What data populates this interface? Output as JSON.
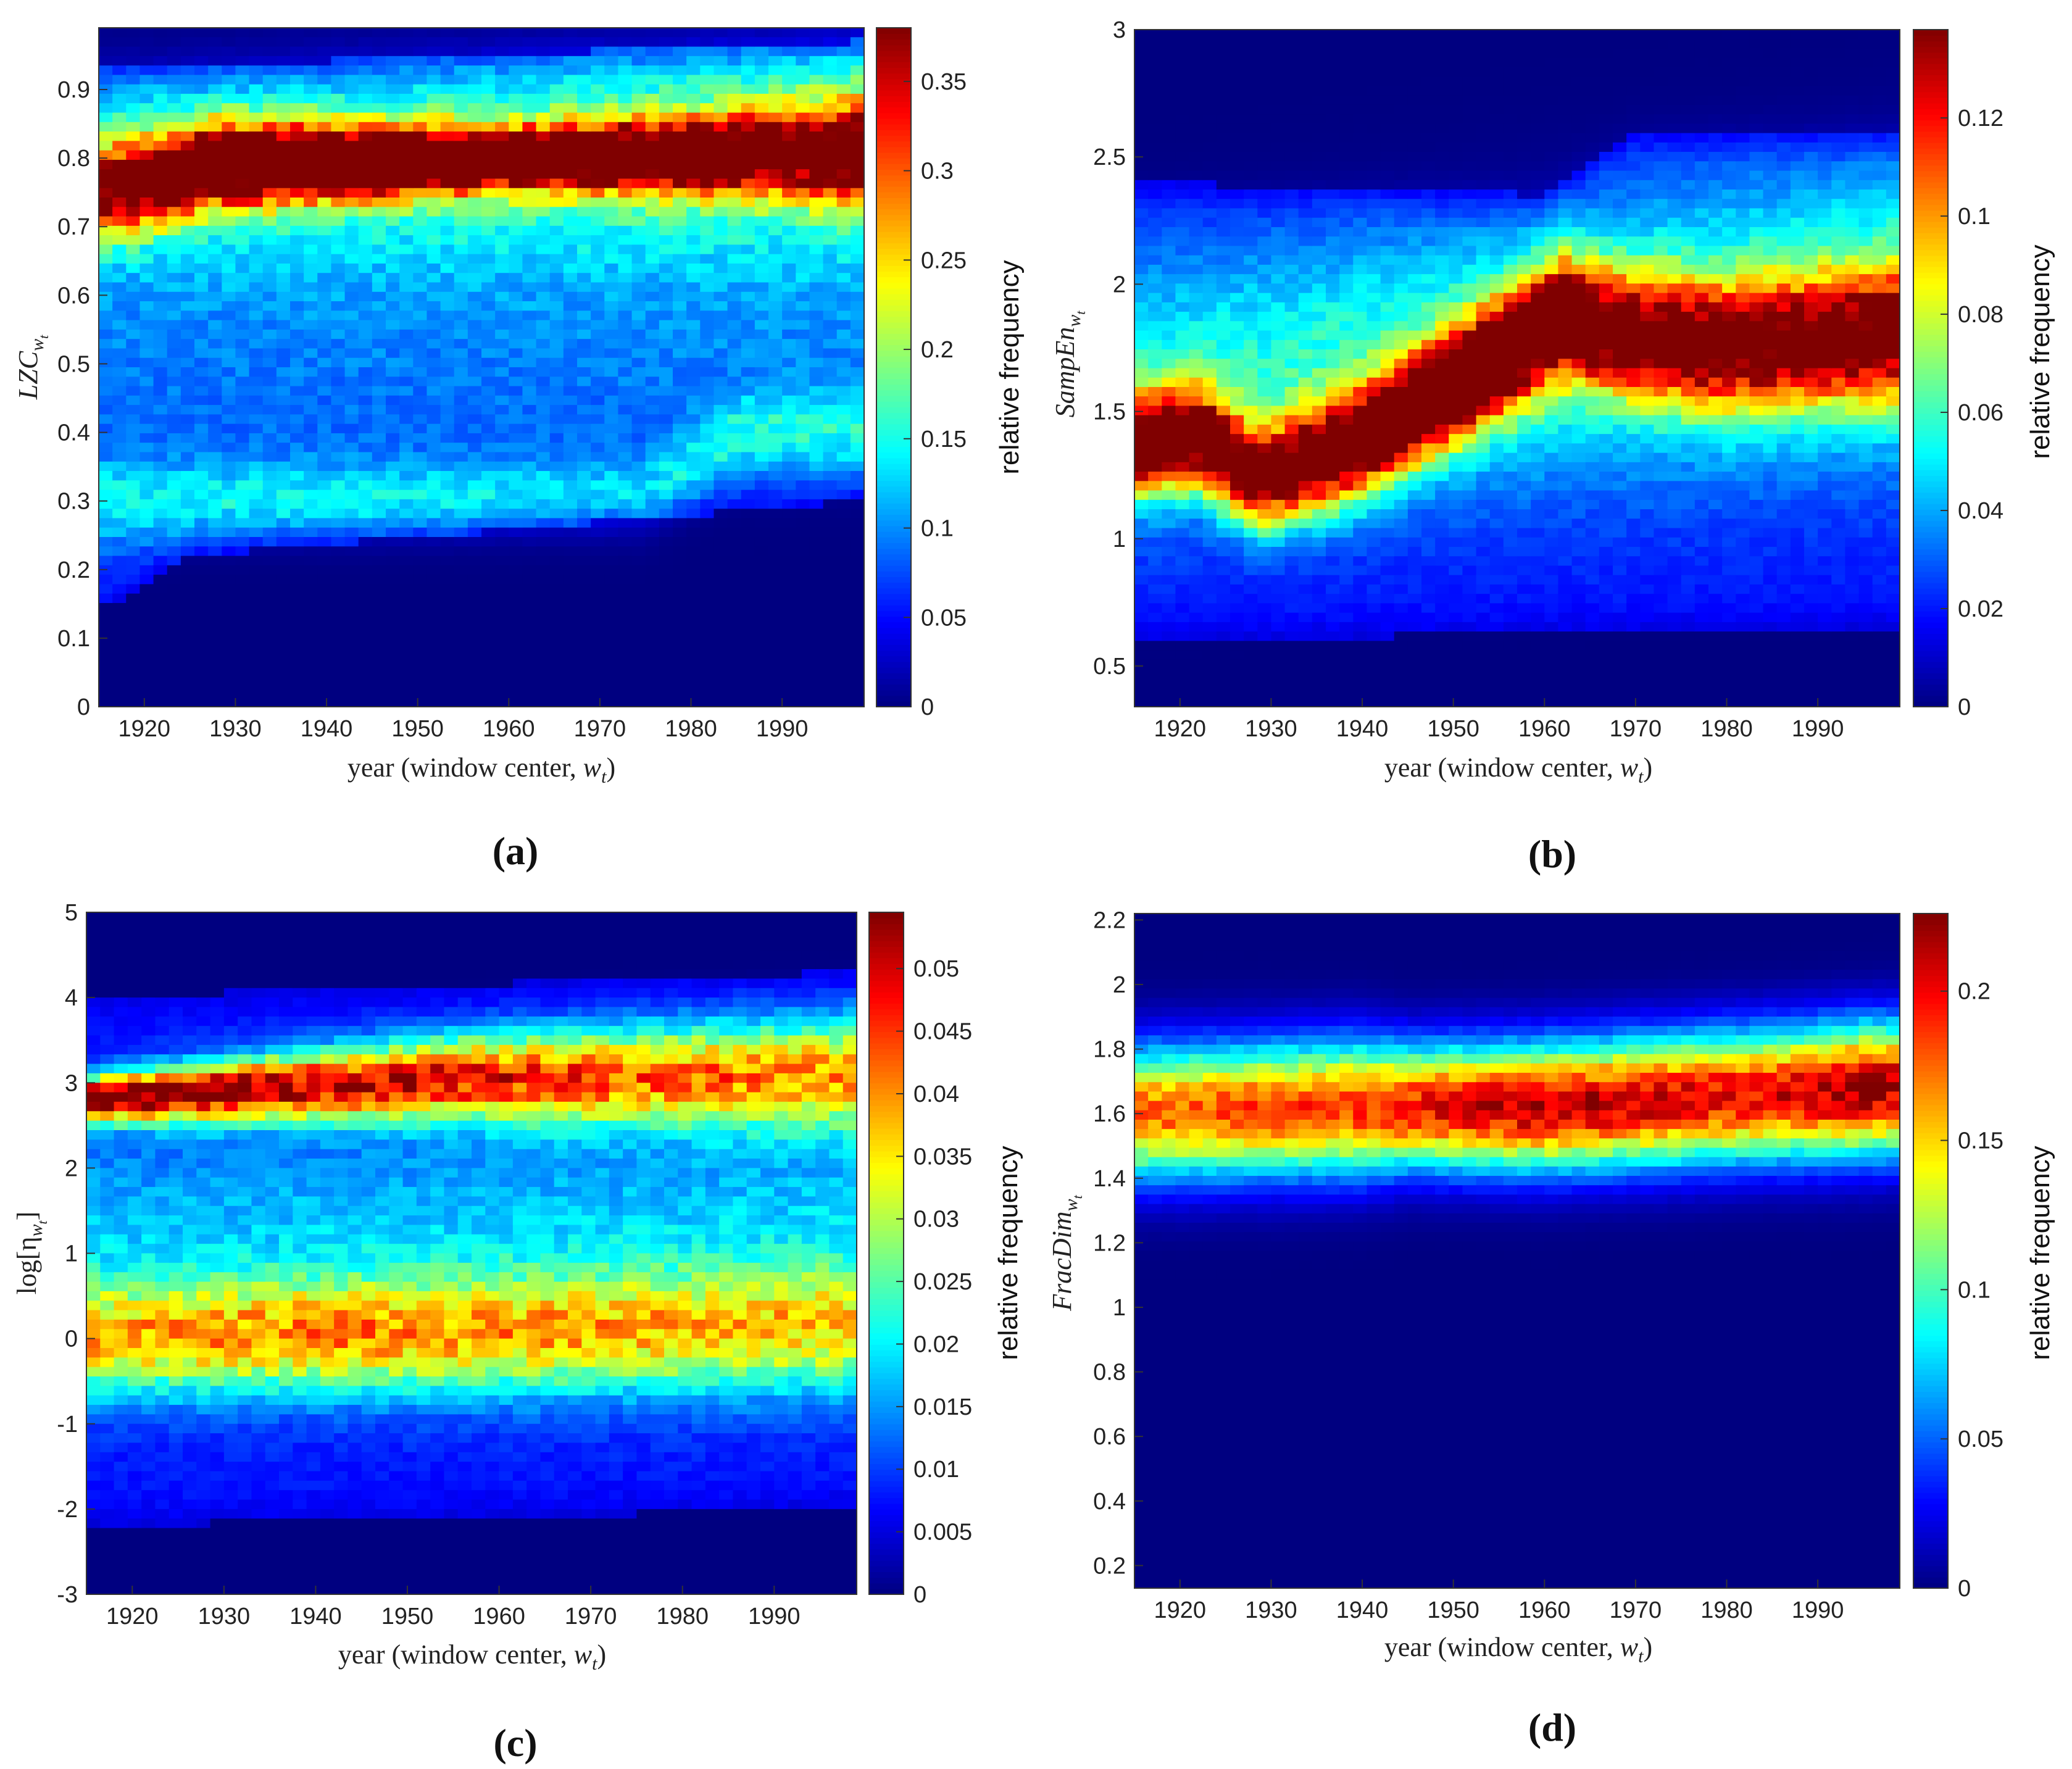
{
  "chart_data": [
    {
      "type": "heatmap",
      "panel": "(a)",
      "title": "",
      "xlabel": "year (window center, w_t)",
      "xlabel_parts": [
        "year (window center, ",
        "w",
        "t",
        ")"
      ],
      "ylabel": "LZC_wt",
      "ylabel_parts": [
        "LZC",
        "w",
        "t"
      ],
      "x_range": [
        1915,
        1999
      ],
      "ylim": [
        0,
        0.99
      ],
      "xticks": [
        1920,
        1930,
        1940,
        1950,
        1960,
        1970,
        1980,
        1990
      ],
      "yticks": [
        0,
        0.1,
        0.2,
        0.3,
        0.4,
        0.5,
        0.6,
        0.7,
        0.8,
        0.9
      ],
      "colorbar": {
        "label": "relative frequency",
        "range": [
          0,
          0.38
        ],
        "ticks": [
          0,
          0.05,
          0.1,
          0.15,
          0.2,
          0.25,
          0.3,
          0.35
        ]
      },
      "colormap": "jet",
      "base_level": 0.07,
      "noise": 0.15,
      "bands": [
        {
          "center": [
            [
              1915,
              0.75
            ],
            [
              1922,
              0.77
            ],
            [
              1927,
              0.79
            ],
            [
              1999,
              0.81
            ]
          ],
          "sigma": [
            [
              1915,
              0.045
            ],
            [
              1960,
              0.03
            ],
            [
              1990,
              0.04
            ],
            [
              1999,
              0.05
            ]
          ],
          "peak": [
            [
              1915,
              0.26
            ],
            [
              1925,
              0.35
            ],
            [
              1950,
              0.38
            ],
            [
              1975,
              0.34
            ],
            [
              1990,
              0.29
            ],
            [
              1999,
              0.27
            ]
          ]
        },
        {
          "center": [
            [
              1915,
              0.78
            ],
            [
              1999,
              0.82
            ]
          ],
          "sigma": [
            [
              1915,
              0.11
            ],
            [
              1999,
              0.13
            ]
          ],
          "peak": [
            [
              1915,
              0.09
            ],
            [
              1999,
              0.12
            ]
          ]
        },
        {
          "center": [
            [
              1915,
              0.3
            ],
            [
              1975,
              0.3
            ],
            [
              1985,
              0.4
            ],
            [
              1999,
              0.4
            ]
          ],
          "sigma": [
            [
              1915,
              0.04
            ],
            [
              1999,
              0.04
            ]
          ],
          "peak": [
            [
              1915,
              0.07
            ],
            [
              1999,
              0.07
            ]
          ]
        },
        {
          "center": [
            [
              1915,
              0.5
            ],
            [
              1999,
              0.5
            ]
          ],
          "sigma": [
            [
              1915,
              0.12
            ],
            [
              1999,
              0.12
            ]
          ],
          "peak": [
            [
              1915,
              0.02
            ],
            [
              1999,
              0.02
            ]
          ]
        }
      ],
      "low_cut": [
        [
          1915,
          0.14
        ],
        [
          1925,
          0.22
        ],
        [
          1999,
          0.3
        ]
      ],
      "high_cut": [
        [
          1915,
          0.93
        ],
        [
          1999,
          0.97
        ]
      ]
    },
    {
      "type": "heatmap",
      "panel": "(b)",
      "title": "",
      "xlabel": "year (window center, w_t)",
      "xlabel_parts": [
        "year (window center, ",
        "w",
        "t",
        ")"
      ],
      "ylabel": "SampEn_wt",
      "ylabel_parts": [
        "SampEn",
        "w",
        "t"
      ],
      "x_range": [
        1915,
        1999
      ],
      "ylim": [
        0.34,
        3.0
      ],
      "xticks": [
        1920,
        1930,
        1940,
        1950,
        1960,
        1970,
        1980,
        1990
      ],
      "yticks": [
        0.5,
        1,
        1.5,
        2,
        2.5,
        3
      ],
      "colorbar": {
        "label": "relative frequency",
        "range": [
          0,
          0.138
        ],
        "ticks": [
          0,
          0.02,
          0.04,
          0.06,
          0.08,
          0.1,
          0.12
        ]
      },
      "colormap": "jet",
      "base_level": 0.02,
      "noise": 0.12,
      "bands": [
        {
          "center": [
            [
              1915,
              1.37
            ],
            [
              1922,
              1.4
            ],
            [
              1929,
              1.23
            ],
            [
              1940,
              1.38
            ],
            [
              1950,
              1.6
            ],
            [
              1962,
              1.87
            ],
            [
              1970,
              1.8
            ],
            [
              1980,
              1.75
            ],
            [
              1999,
              1.8
            ]
          ],
          "sigma": [
            [
              1915,
              0.13
            ],
            [
              1999,
              0.18
            ]
          ],
          "peak": [
            [
              1915,
              0.125
            ],
            [
              1930,
              0.115
            ],
            [
              1940,
              0.13
            ],
            [
              1955,
              0.13
            ],
            [
              1962,
              0.122
            ],
            [
              1968,
              0.1
            ],
            [
              1999,
              0.092
            ]
          ]
        },
        {
          "center": [
            [
              1915,
              1.6
            ],
            [
              1999,
              1.9
            ]
          ],
          "sigma": [
            [
              1915,
              0.35
            ],
            [
              1999,
              0.4
            ]
          ],
          "peak": [
            [
              1915,
              0.035
            ],
            [
              1999,
              0.045
            ]
          ]
        }
      ],
      "low_cut": [
        [
          1915,
          0.6
        ],
        [
          1999,
          0.65
        ]
      ],
      "high_cut": [
        [
          1915,
          2.4
        ],
        [
          1960,
          2.35
        ],
        [
          1970,
          2.6
        ],
        [
          1999,
          2.6
        ]
      ]
    },
    {
      "type": "heatmap",
      "panel": "(c)",
      "title": "",
      "xlabel": "year (window center, w_t)",
      "xlabel_parts": [
        "year (window center, ",
        "w",
        "t",
        ")"
      ],
      "ylabel": "log[η_wt]",
      "ylabel_parts": [
        "log[η",
        "w",
        "t",
        "]"
      ],
      "x_range": [
        1915,
        1999
      ],
      "ylim": [
        -3,
        5
      ],
      "xticks": [
        1920,
        1930,
        1940,
        1950,
        1960,
        1970,
        1980,
        1990
      ],
      "yticks": [
        -3,
        -2,
        -1,
        0,
        1,
        2,
        3,
        4,
        5
      ],
      "colorbar": {
        "label": "relative frequency",
        "range": [
          0,
          0.0545
        ],
        "ticks": [
          0,
          0.005,
          0.01,
          0.015,
          0.02,
          0.025,
          0.03,
          0.035,
          0.04,
          0.045,
          0.05
        ]
      },
      "colormap": "jet",
      "base_level": 0.008,
      "noise": 0.15,
      "bands": [
        {
          "center": [
            [
              1915,
              2.8
            ],
            [
              1930,
              2.9
            ],
            [
              1955,
              3.05
            ],
            [
              1999,
              3.1
            ]
          ],
          "sigma": [
            [
              1915,
              0.18
            ],
            [
              1960,
              0.35
            ],
            [
              1999,
              0.45
            ]
          ],
          "peak": [
            [
              1915,
              0.05
            ],
            [
              1935,
              0.044
            ],
            [
              1955,
              0.04
            ],
            [
              1975,
              0.034
            ],
            [
              1999,
              0.031
            ]
          ]
        },
        {
          "center": [
            [
              1915,
              0.0
            ],
            [
              1999,
              0.1
            ]
          ],
          "sigma": [
            [
              1915,
              0.45
            ],
            [
              1999,
              0.5
            ]
          ],
          "peak": [
            [
              1915,
              0.027
            ],
            [
              1940,
              0.029
            ],
            [
              1999,
              0.025
            ]
          ]
        },
        {
          "center": [
            [
              1915,
              1.2
            ],
            [
              1999,
              1.3
            ]
          ],
          "sigma": [
            [
              1915,
              0.9
            ],
            [
              1999,
              0.9
            ]
          ],
          "peak": [
            [
              1915,
              0.009
            ],
            [
              1999,
              0.01
            ]
          ]
        }
      ],
      "low_cut": [
        [
          1915,
          -2.2
        ],
        [
          1999,
          -2.0
        ]
      ],
      "high_cut": [
        [
          1915,
          4.0
        ],
        [
          1999,
          4.3
        ]
      ]
    },
    {
      "type": "heatmap",
      "panel": "(d)",
      "title": "",
      "xlabel": "year (window center, w_t)",
      "xlabel_parts": [
        "year (window center, ",
        "w",
        "t",
        ")"
      ],
      "ylabel": "FracDim_wt",
      "ylabel_parts": [
        "FracDim",
        "w",
        "t"
      ],
      "x_range": [
        1915,
        1999
      ],
      "ylim": [
        0.13,
        2.22
      ],
      "xticks": [
        1920,
        1930,
        1940,
        1950,
        1960,
        1970,
        1980,
        1990
      ],
      "yticks": [
        0.2,
        0.4,
        0.6,
        0.8,
        1,
        1.2,
        1.4,
        1.6,
        1.8,
        2,
        2.2
      ],
      "colorbar": {
        "label": "relative frequency",
        "range": [
          0,
          0.226
        ],
        "ticks": [
          0,
          0.05,
          0.1,
          0.15,
          0.2
        ]
      },
      "colormap": "jet",
      "base_level": 0.0,
      "noise": 0.1,
      "bands": [
        {
          "center": [
            [
              1915,
              1.6
            ],
            [
              1940,
              1.62
            ],
            [
              1960,
              1.62
            ],
            [
              1999,
              1.68
            ]
          ],
          "sigma": [
            [
              1915,
              0.14
            ],
            [
              1940,
              0.14
            ],
            [
              1945,
              0.13
            ],
            [
              1999,
              0.14
            ]
          ],
          "peak": [
            [
              1915,
              0.175
            ],
            [
              1940,
              0.19
            ],
            [
              1960,
              0.215
            ],
            [
              1985,
              0.2
            ],
            [
              1995,
              0.225
            ],
            [
              1999,
              0.21
            ]
          ]
        }
      ],
      "low_cut": [
        [
          1915,
          1.0
        ],
        [
          1999,
          1.1
        ]
      ],
      "high_cut": [
        [
          1915,
          2.05
        ],
        [
          1999,
          2.05
        ]
      ]
    }
  ]
}
